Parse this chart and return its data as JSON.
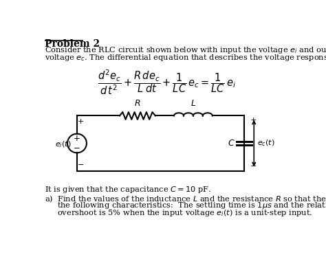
{
  "title": "Problem 2",
  "bg_color": "#ffffff",
  "text_color": "#000000",
  "figsize": [
    4.74,
    3.9
  ],
  "dpi": 100,
  "paragraph1": "Consider the RLC circuit shown below with input the voltage $e_i$ and output the",
  "paragraph2": "voltage $e_c$. The differential equation that describes the voltage response is:",
  "bottom_text1": "It is given that the capacitance $C = 10$ pF.",
  "bottom_text2": "a)  Find the values of the inductance $L$ and the resistance $R$ so that the system has",
  "bottom_text3": "     the following characteristics:  The settling time is $1\\mu s$ and the relative",
  "bottom_text4": "     overshoot is 5% when the input voltage $e_i(t)$ is a unit-step input."
}
